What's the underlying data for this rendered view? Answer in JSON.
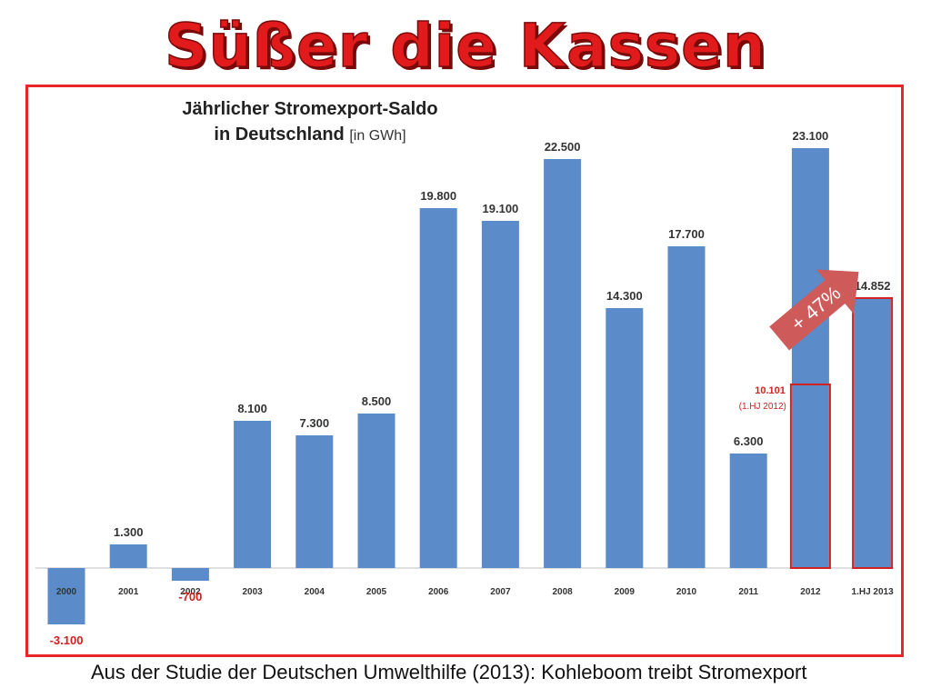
{
  "page": {
    "title": "Süßer die Kassen",
    "caption": "Aus der Studie der Deutschen Umwelthilfe (2013): Kohleboom treibt Stromexport"
  },
  "colors": {
    "bar": "#5b8bc9",
    "negative_label": "#d32020",
    "highlight": "#d32020",
    "arrow": "#cf5a5a",
    "frame": "#e8262a"
  },
  "chart_data": {
    "type": "bar",
    "title_line1": "Jährlicher Stromexport-Saldo",
    "title_line2": "in Deutschland",
    "unit": "[in GWh]",
    "categories": [
      "2000",
      "2001",
      "2002",
      "2003",
      "2004",
      "2005",
      "2006",
      "2007",
      "2008",
      "2009",
      "2010",
      "2011",
      "2012",
      "1.HJ 2013"
    ],
    "values": [
      -3100,
      1300,
      -700,
      8100,
      7300,
      8500,
      19800,
      19100,
      22500,
      14300,
      17700,
      6300,
      23100,
      14852
    ],
    "value_labels": [
      "-3.100",
      "1.300",
      "-700",
      "8.100",
      "7.300",
      "8.500",
      "19.800",
      "19.100",
      "22.500",
      "14.300",
      "17.700",
      "6.300",
      "23.100",
      "14.852"
    ],
    "grid": false,
    "highlights": [
      {
        "category": "2012",
        "value": 10101,
        "label": "10.101",
        "sublabel": "(1.HJ 2012)"
      },
      {
        "category": "1.HJ 2013",
        "value": 14852
      }
    ],
    "annotation": {
      "text": "+ 47%"
    }
  }
}
